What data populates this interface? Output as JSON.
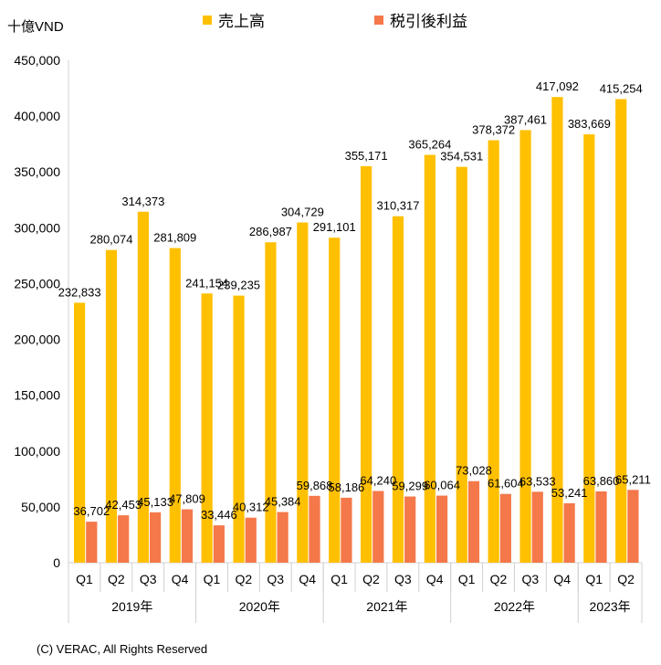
{
  "chart_data": {
    "type": "bar",
    "unit_label": "十億VND",
    "categories": [
      "Q1",
      "Q2",
      "Q3",
      "Q4",
      "Q1",
      "Q2",
      "Q3",
      "Q4",
      "Q1",
      "Q2",
      "Q3",
      "Q4",
      "Q1",
      "Q2",
      "Q3",
      "Q4",
      "Q1",
      "Q2"
    ],
    "groups": [
      {
        "label": "2019年",
        "count": 4
      },
      {
        "label": "2020年",
        "count": 4
      },
      {
        "label": "2021年",
        "count": 4
      },
      {
        "label": "2022年",
        "count": 4
      },
      {
        "label": "2023年",
        "count": 2
      }
    ],
    "series": [
      {
        "name": "売上高",
        "color": "#FFC000",
        "values": [
          232833,
          280074,
          314373,
          281809,
          241154,
          239235,
          286987,
          304729,
          291101,
          355171,
          310317,
          365264,
          354531,
          378372,
          387461,
          417092,
          383669,
          415254
        ],
        "labels": [
          "232,833",
          "280,074",
          "314,373",
          "281,809",
          "241,154",
          "239,235",
          "286,987",
          "304,729",
          "291,101",
          "355,171",
          "310,317",
          "365,264",
          "354,531",
          "378,372",
          "387,461",
          "417,092",
          "383,669",
          "415,254"
        ]
      },
      {
        "name": "税引後利益",
        "color": "#F4784A",
        "values": [
          36702,
          42453,
          45133,
          47809,
          33446,
          40312,
          45384,
          59868,
          58186,
          64240,
          59299,
          60064,
          73028,
          61604,
          63533,
          53241,
          63860,
          65211
        ],
        "labels": [
          "36,702",
          "42,453",
          "45,133",
          "47,809",
          "33,446",
          "40,312",
          "45,384",
          "59,868",
          "58,186",
          "64,240",
          "59,299",
          "60,064",
          "73,028",
          "61,604",
          "63,533",
          "53,241",
          "63,860",
          "65,211"
        ]
      }
    ],
    "ylim": [
      0,
      450000
    ],
    "yticks": [
      0,
      50000,
      100000,
      150000,
      200000,
      250000,
      300000,
      350000,
      400000,
      450000
    ],
    "ytick_labels": [
      "0",
      "50,000",
      "100,000",
      "150,000",
      "200,000",
      "250,000",
      "300,000",
      "350,000",
      "400,000",
      "450,000"
    ],
    "grid": false,
    "legend_position": "top"
  },
  "footer": {
    "credit": "(C) VERAC, All Rights Reserved"
  }
}
